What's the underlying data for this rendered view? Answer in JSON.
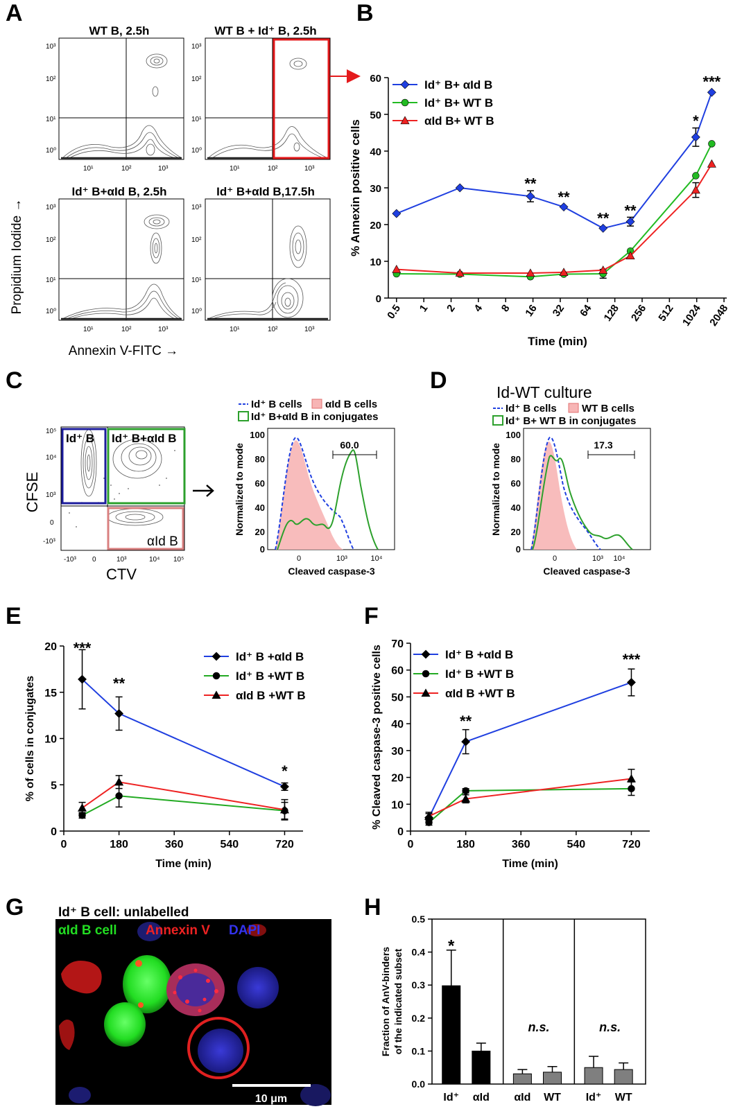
{
  "panels": {
    "A": {
      "letter": "A",
      "y_axis_label": "Propidium Iodide →",
      "x_axis_label": "Annexin V-FITC →",
      "tick_labels": [
        "10¹",
        "10²",
        "10³",
        "10⁰"
      ],
      "plots": [
        {
          "title": "WT B, 2.5h"
        },
        {
          "title": "WT B + Id⁺ B, 2.5h"
        },
        {
          "title": "Id⁺ B+αId B, 2.5h"
        },
        {
          "title": "Id⁺ B+αId B,17.5h"
        }
      ],
      "gate_color": "#e41a1c"
    },
    "C": {
      "letter": "C",
      "dot_plot": {
        "y_label": "CFSE",
        "x_label": "CTV",
        "gates": [
          {
            "label": "Id⁺ B",
            "color": "#1c1c9c"
          },
          {
            "label": "Id⁺ B+αId B",
            "color": "#2ca02c"
          },
          {
            "label": "αId B",
            "color": "#d98080"
          }
        ],
        "y_ticks": [
          "10⁵",
          "10⁴",
          "10³",
          "0",
          "-10³"
        ],
        "x_ticks": [
          "-10³",
          "0",
          "10³",
          "10⁴",
          "10⁵"
        ]
      },
      "histogram": {
        "legend": [
          "Id⁺ B cells",
          "αId B cells",
          "Id⁺ B+αId B in conjugates"
        ],
        "y_label": "Normalized to mode",
        "x_label": "Cleaved caspase-3",
        "y_ticks": [
          "100",
          "80",
          "60",
          "40",
          "20",
          "0"
        ],
        "x_ticks": [
          "0",
          "10³",
          "10⁴"
        ],
        "gate_value": "60.0"
      }
    },
    "D": {
      "letter": "D",
      "heading": "Id-WT culture",
      "legend": [
        "Id⁺ B cells",
        "WT B cells",
        "Id⁺ B+ WT B in conjugates"
      ],
      "y_label": "Normalized to mode",
      "x_label": "Cleaved caspase-3",
      "y_ticks": [
        "100",
        "80",
        "60",
        "40",
        "20",
        "0"
      ],
      "x_ticks": [
        "0",
        "10³",
        "10⁴"
      ],
      "gate_value": "17.3"
    },
    "G": {
      "letter": "G",
      "caption": "Id⁺ B cell: unlabelled",
      "channels": [
        {
          "label": "αId B cell",
          "color": "#22dd22"
        },
        {
          "label": "Annexin V",
          "color": "#ee2222"
        },
        {
          "label": "DAPI",
          "color": "#3333ee"
        }
      ],
      "scale_bar": "10 μm"
    }
  },
  "chart_data": [
    {
      "panel": "B",
      "type": "line",
      "x_scale": "log2",
      "xlabel": "Time (min)",
      "ylabel": "% Annexin positive cells",
      "ylim": [
        0,
        60
      ],
      "yticks": [
        0,
        10,
        20,
        30,
        40,
        50,
        60
      ],
      "xticks": [
        0.5,
        1,
        2,
        4,
        8,
        16,
        32,
        64,
        128,
        256,
        512,
        1024,
        2048
      ],
      "xtick_labels": [
        "0.5",
        "1",
        "2",
        "4",
        "8",
        "16",
        "32",
        "64",
        "128",
        "256",
        "512",
        "1024",
        "2048"
      ],
      "x": [
        0.5,
        2.5,
        15,
        35,
        95,
        190,
        1000,
        1500
      ],
      "legend_position": "top-left",
      "series": [
        {
          "name": "Id⁺ B+ αId B",
          "color": "#1f3fe0",
          "marker": "diamond",
          "values": [
            23,
            30,
            27.7,
            24.8,
            19,
            20.8,
            43.8,
            56
          ],
          "err": [
            0,
            0,
            1.5,
            0,
            0,
            1.2,
            2.5,
            0
          ]
        },
        {
          "name": "Id⁺ B+ WT B",
          "color": "#22bb22",
          "marker": "circle",
          "values": [
            6.6,
            6.5,
            5.8,
            6.5,
            6.6,
            12.8,
            33.3,
            42
          ],
          "err": [
            0,
            0,
            0,
            0,
            1.2,
            0,
            0,
            0
          ]
        },
        {
          "name": "αId B+ WT B",
          "color": "#ee2222",
          "marker": "triangle",
          "values": [
            7.8,
            6.8,
            6.8,
            7,
            7.6,
            11.5,
            29.4,
            36.5
          ],
          "err": [
            0,
            0,
            0,
            0,
            0,
            0,
            2,
            0
          ]
        }
      ],
      "annotations": [
        {
          "x": 15,
          "y": 29.7,
          "text": "**"
        },
        {
          "x": 35,
          "y": 26,
          "text": "**"
        },
        {
          "x": 95,
          "y": 20.3,
          "text": "**"
        },
        {
          "x": 190,
          "y": 22.4,
          "text": "**"
        },
        {
          "x": 1000,
          "y": 46.8,
          "text": "*"
        },
        {
          "x": 1500,
          "y": 57.5,
          "text": "***"
        }
      ]
    },
    {
      "panel": "E",
      "type": "line",
      "xlabel": "Time (min)",
      "ylabel": "% of cells in conjugates",
      "xlim": [
        0,
        780
      ],
      "ylim": [
        0,
        20
      ],
      "xticks": [
        0,
        180,
        360,
        540,
        720
      ],
      "yticks": [
        0,
        5,
        10,
        15,
        20
      ],
      "x": [
        60,
        180,
        720
      ],
      "legend_position": "top-right",
      "series": [
        {
          "name": "Id⁺ B +αId B",
          "color": "#1f3fe0",
          "marker": "diamond",
          "values": [
            16.4,
            12.7,
            4.8
          ],
          "err": [
            3.2,
            1.8,
            0.4
          ]
        },
        {
          "name": "Id⁺ B +WT B",
          "color": "#22aa22",
          "marker": "circle",
          "values": [
            1.7,
            3.8,
            2.2
          ],
          "err": [
            0.3,
            1.2,
            0.9
          ]
        },
        {
          "name": "αId B +WT B",
          "color": "#ee2222",
          "marker": "triangle",
          "values": [
            2.5,
            5.3,
            2.3
          ],
          "err": [
            0.6,
            0.7,
            1.1
          ]
        }
      ],
      "annotations": [
        {
          "x": 60,
          "y": 19.2,
          "text": "***"
        },
        {
          "x": 180,
          "y": 15.4,
          "text": "**"
        },
        {
          "x": 720,
          "y": 5.9,
          "text": "*"
        }
      ]
    },
    {
      "panel": "F",
      "type": "line",
      "xlabel": "Time (min)",
      "ylabel": "% Cleaved caspase-3  positive cells",
      "xlim": [
        0,
        780
      ],
      "ylim": [
        0,
        70
      ],
      "xticks": [
        0,
        180,
        360,
        540,
        720
      ],
      "yticks": [
        0,
        10,
        20,
        30,
        40,
        50,
        60,
        70
      ],
      "x": [
        60,
        180,
        720
      ],
      "legend_position": "top-left",
      "series": [
        {
          "name": "Id⁺ B +αId B",
          "color": "#1f3fe0",
          "marker": "diamond",
          "values": [
            5,
            33.3,
            55.4
          ],
          "err": [
            1.5,
            4.5,
            5
          ]
        },
        {
          "name": "Id⁺ B +WT B",
          "color": "#22aa22",
          "marker": "circle",
          "values": [
            3.2,
            15,
            15.8
          ],
          "err": [
            1,
            0.8,
            2.5
          ]
        },
        {
          "name": "αId B +WT B",
          "color": "#ee2222",
          "marker": "triangle",
          "values": [
            5.5,
            12,
            19.5
          ],
          "err": [
            1.5,
            1.5,
            3.5
          ]
        }
      ],
      "annotations": [
        {
          "x": 180,
          "y": 39,
          "text": "**"
        },
        {
          "x": 720,
          "y": 62,
          "text": "***"
        }
      ]
    },
    {
      "panel": "H",
      "type": "bar",
      "ylabel": "Fraction of AnV-binders of the indicated subset",
      "ylabel_lines": [
        "Fraction of AnV-binders",
        "of the indicated subset"
      ],
      "ylim": [
        0,
        0.5
      ],
      "yticks": [
        0,
        0.1,
        0.2,
        0.3,
        0.4,
        0.5
      ],
      "ytick_labels": [
        "0.0",
        "0.1",
        "0.2",
        "0.3",
        "0.4",
        "0.5"
      ],
      "groups": [
        {
          "categories": [
            "Id⁺",
            "αId"
          ],
          "values": [
            0.298,
            0.1
          ],
          "err": [
            0.108,
            0.024
          ],
          "colors": [
            "#000000",
            "#000000"
          ],
          "annotation": "*"
        },
        {
          "categories": [
            "αId",
            "WT"
          ],
          "values": [
            0.031,
            0.036
          ],
          "err": [
            0.013,
            0.017
          ],
          "colors": [
            "#7f7f7f",
            "#7f7f7f"
          ],
          "annotation": "n.s."
        },
        {
          "categories": [
            "Id⁺",
            "WT"
          ],
          "values": [
            0.05,
            0.044
          ],
          "err": [
            0.034,
            0.02
          ],
          "colors": [
            "#7f7f7f",
            "#7f7f7f"
          ],
          "annotation": "n.s."
        }
      ]
    }
  ]
}
